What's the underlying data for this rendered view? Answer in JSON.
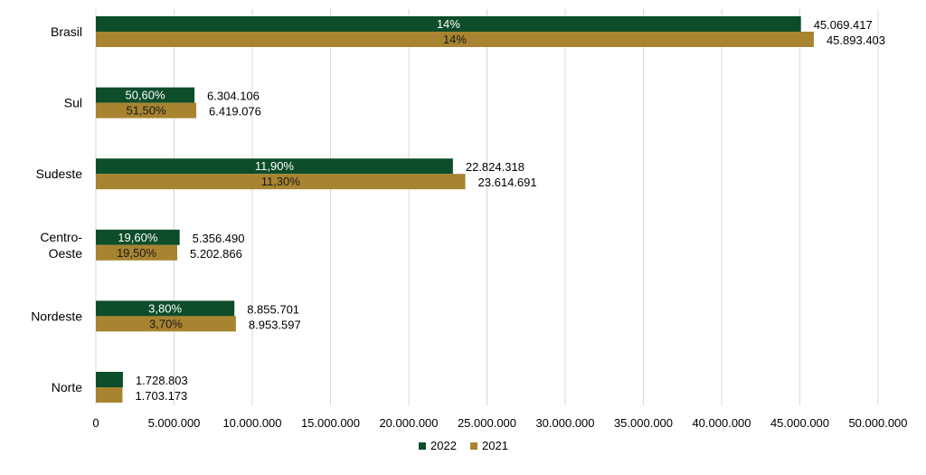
{
  "chart_data": {
    "type": "bar",
    "orientation": "horizontal",
    "categories": [
      "Brasil",
      "Sul",
      "Sudeste",
      "Centro-Oeste",
      "Nordeste",
      "Norte"
    ],
    "category_lines": [
      [
        "Brasil"
      ],
      [
        "Sul"
      ],
      [
        "Sudeste"
      ],
      [
        "Centro-",
        "Oeste"
      ],
      [
        "Nordeste"
      ],
      [
        "Norte"
      ]
    ],
    "series": [
      {
        "name": "2022",
        "color": "#0d4d2a",
        "values": [
          45069417,
          6304106,
          22824318,
          5356490,
          8855701,
          1728803
        ],
        "value_labels": [
          "45.069.417",
          "6.304.106",
          "22.824.318",
          "5.356.490",
          "8.855.701",
          "1.728.803"
        ],
        "pct_labels": [
          "14%",
          "50,60%",
          "11,90%",
          "19,60%",
          "3,80%",
          ""
        ]
      },
      {
        "name": "2021",
        "color": "#a88430",
        "values": [
          45893403,
          6419076,
          23614691,
          5202866,
          8953597,
          1703173
        ],
        "value_labels": [
          "45.893.403",
          "6.419.076",
          "23.614.691",
          "5.202.866",
          "8.953.597",
          "1.703.173"
        ],
        "pct_labels": [
          "14%",
          "51,50%",
          "11,30%",
          "19,50%",
          "3,70%",
          ""
        ]
      }
    ],
    "x_ticks": [
      0,
      5000000,
      10000000,
      15000000,
      20000000,
      25000000,
      30000000,
      35000000,
      40000000,
      45000000,
      50000000
    ],
    "x_tick_labels": [
      "0",
      "5.000.000",
      "10.000.000",
      "15.000.000",
      "20.000.000",
      "25.000.000",
      "30.000.000",
      "35.000.000",
      "40.000.000",
      "45.000.000",
      "50.000.000"
    ],
    "xlim": [
      0,
      50000000
    ],
    "grid": true,
    "legend_position": "bottom"
  }
}
